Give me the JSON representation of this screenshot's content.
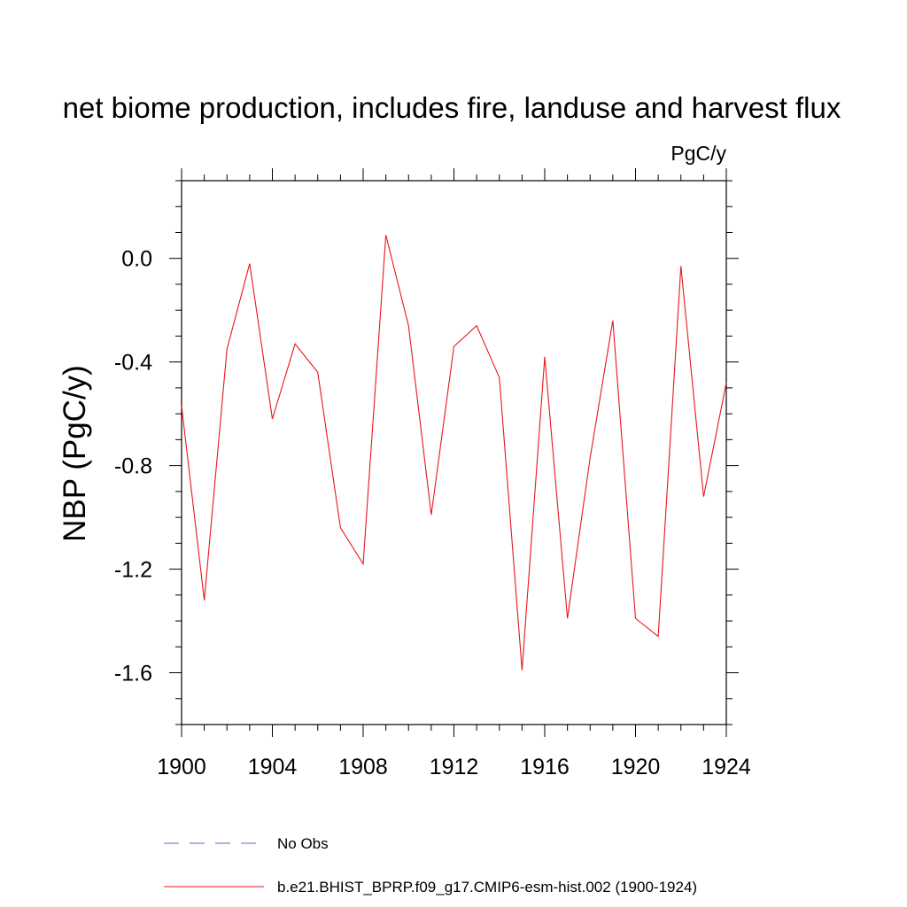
{
  "chart_data": {
    "type": "line",
    "title": "net biome production, includes fire, landuse and harvest flux",
    "units": "PgC/y",
    "ylabel": "NBP  (PgC/y)",
    "xlabel": "",
    "xlim": [
      1900,
      1924
    ],
    "ylim": [
      -1.8,
      0.3
    ],
    "xticks": [
      1900,
      1904,
      1908,
      1912,
      1916,
      1920,
      1924
    ],
    "xtick_labels": [
      "1900",
      "1904",
      "1908",
      "1912",
      "1916",
      "1920",
      "1924"
    ],
    "yticks": [
      0.0,
      -0.4,
      -0.8,
      -1.2,
      -1.6
    ],
    "ytick_labels": [
      "0.0",
      "-0.4",
      "-0.8",
      "-1.2",
      "-1.6"
    ],
    "grid": false,
    "legend_position": "bottom",
    "series": [
      {
        "name": "b.e21.BHIST_BPRP.f09_g17.CMIP6-esm-hist.002 (1900-1924)",
        "color": "#e8161b",
        "style": "solid",
        "x": [
          1900,
          1901,
          1902,
          1903,
          1904,
          1905,
          1906,
          1907,
          1908,
          1909,
          1910,
          1911,
          1912,
          1913,
          1914,
          1915,
          1916,
          1917,
          1918,
          1919,
          1920,
          1921,
          1922,
          1923,
          1924
        ],
        "values": [
          -0.57,
          -1.32,
          -0.35,
          -0.02,
          -0.62,
          -0.33,
          -0.44,
          -1.04,
          -1.18,
          0.09,
          -0.26,
          -0.99,
          -0.34,
          -0.26,
          -0.46,
          -1.59,
          -0.38,
          -1.39,
          -0.77,
          -0.24,
          -1.39,
          -1.46,
          -0.03,
          -0.92,
          -0.48
        ]
      }
    ],
    "legend": [
      {
        "label": "No Obs",
        "color": "#6b5fd0",
        "style": "dashed"
      },
      {
        "label": "b.e21.BHIST_BPRP.f09_g17.CMIP6-esm-hist.002 (1900-1924)",
        "color": "#e8161b",
        "style": "solid"
      }
    ]
  }
}
